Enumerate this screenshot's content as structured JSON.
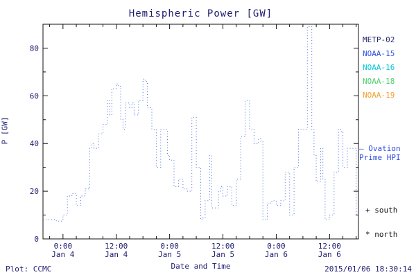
{
  "title": "Hemispheric Power [GW]",
  "footer": {
    "plot_credit": "Plot: CCMC",
    "timestamp": "2015/01/06 18:30:14"
  },
  "legend": {
    "satellites": [
      {
        "label": "METP-02",
        "color": "#26266b"
      },
      {
        "label": "NOAA-15",
        "color": "#2f4fe0"
      },
      {
        "label": "NOAA-16",
        "color": "#00c8d7"
      },
      {
        "label": "NOAA-18",
        "color": "#4fcf6e"
      },
      {
        "label": "NOAA-19",
        "color": "#f0a030"
      }
    ],
    "ovation": {
      "marker": "—",
      "line1": "Ovation",
      "line2": "Prime HPI",
      "color": "#2f4fe0"
    },
    "south_marker": "+ south",
    "north_marker": "* north"
  },
  "chart_data": {
    "type": "line",
    "title": "Hemispheric Power [GW]",
    "xlabel": "Date and Time",
    "ylabel": "P [GW]",
    "ylim": [
      0,
      90
    ],
    "xlim_hours": [
      -4.5,
      66.5
    ],
    "x_hours_reference": "hours since 2015-01-04 00:00",
    "step": true,
    "line_style": "dotted",
    "line_color": "#4169E1",
    "grid": false,
    "legend_position": "right-outside",
    "y_ticks": [
      0,
      20,
      40,
      60,
      80
    ],
    "y_minor_step": 10,
    "x_minor_step": 3,
    "x_ticks": [
      {
        "pos": 0,
        "label": "0:00",
        "sublabel": "Jan 4"
      },
      {
        "pos": 12,
        "label": "12:00",
        "sublabel": "Jan 4"
      },
      {
        "pos": 24,
        "label": "0:00",
        "sublabel": "Jan 5"
      },
      {
        "pos": 36,
        "label": "12:00",
        "sublabel": "Jan 5"
      },
      {
        "pos": 48,
        "label": "0:00",
        "sublabel": "Jan 6"
      },
      {
        "pos": 60,
        "label": "12:00",
        "sublabel": "Jan 6"
      }
    ],
    "points": [
      [
        -4.5,
        8
      ],
      [
        -1.5,
        7.5
      ],
      [
        0,
        10
      ],
      [
        1,
        18
      ],
      [
        2,
        19
      ],
      [
        3,
        14
      ],
      [
        4,
        18
      ],
      [
        5,
        21
      ],
      [
        6,
        38
      ],
      [
        6.5,
        40
      ],
      [
        7,
        38
      ],
      [
        8,
        44
      ],
      [
        9,
        48
      ],
      [
        10,
        58
      ],
      [
        10.5,
        52
      ],
      [
        11,
        63
      ],
      [
        12,
        65
      ],
      [
        12.5,
        64
      ],
      [
        13,
        50
      ],
      [
        13.5,
        46
      ],
      [
        14,
        57
      ],
      [
        15,
        55
      ],
      [
        15.5,
        57
      ],
      [
        16,
        52
      ],
      [
        17,
        58
      ],
      [
        18,
        67
      ],
      [
        18.5,
        66
      ],
      [
        19,
        55
      ],
      [
        20,
        46
      ],
      [
        21,
        30
      ],
      [
        22,
        46
      ],
      [
        23,
        46
      ],
      [
        23.5,
        35
      ],
      [
        24,
        33
      ],
      [
        25,
        22
      ],
      [
        26,
        25
      ],
      [
        27,
        21
      ],
      [
        28,
        20
      ],
      [
        29,
        51
      ],
      [
        30,
        30
      ],
      [
        31,
        8
      ],
      [
        31.5,
        9
      ],
      [
        32,
        16
      ],
      [
        33,
        35
      ],
      [
        33.5,
        13
      ],
      [
        34,
        13
      ],
      [
        35,
        20
      ],
      [
        35.5,
        22
      ],
      [
        36,
        18
      ],
      [
        37,
        22
      ],
      [
        38,
        14
      ],
      [
        39,
        25
      ],
      [
        40,
        43
      ],
      [
        41,
        58
      ],
      [
        42,
        46
      ],
      [
        43,
        40
      ],
      [
        44,
        42
      ],
      [
        44.5,
        41
      ],
      [
        45,
        8
      ],
      [
        46,
        15
      ],
      [
        47,
        16
      ],
      [
        48,
        14
      ],
      [
        49,
        16
      ],
      [
        50,
        28
      ],
      [
        51,
        10
      ],
      [
        52,
        30
      ],
      [
        53,
        46
      ],
      [
        54,
        46
      ],
      [
        55,
        89
      ],
      [
        56,
        46
      ],
      [
        56.5,
        35
      ],
      [
        57,
        24
      ],
      [
        58,
        38
      ],
      [
        58.5,
        25
      ],
      [
        59,
        8
      ],
      [
        60,
        10
      ],
      [
        61,
        28
      ],
      [
        62,
        46
      ],
      [
        62.5,
        45
      ],
      [
        63,
        30
      ],
      [
        64,
        38
      ],
      [
        65,
        38
      ],
      [
        66,
        10
      ],
      [
        66.5,
        9
      ]
    ]
  }
}
